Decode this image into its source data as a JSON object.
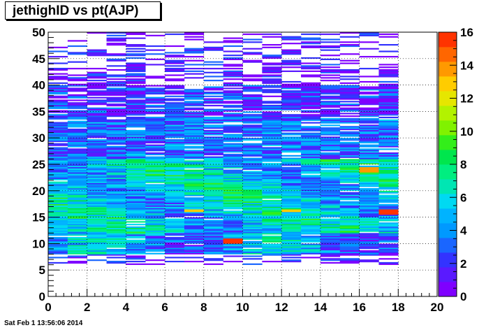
{
  "title": "jethighID vs pt(AJP)",
  "footer": {
    "timestamp": "Sat Feb  1 13:56:06 2014"
  },
  "chart_data": {
    "type": "heatmap",
    "title": "jethighID vs pt(AJP)",
    "xlabel": "",
    "ylabel": "",
    "xlim": [
      0,
      20
    ],
    "ylim": [
      0,
      50
    ],
    "x_ticks": [
      "0",
      "2",
      "4",
      "6",
      "8",
      "10",
      "12",
      "14",
      "16",
      "18",
      "20"
    ],
    "y_ticks": [
      "0",
      "5",
      "10",
      "15",
      "20",
      "25",
      "30",
      "35",
      "40",
      "45",
      "50"
    ],
    "colorbar": {
      "min": 0,
      "max": 16,
      "ticks": [
        "0",
        "2",
        "4",
        "6",
        "8",
        "10",
        "12",
        "14",
        "16"
      ],
      "palette": [
        "#7f00ff",
        "#5a1aff",
        "#3333ff",
        "#1a66ff",
        "#0099ff",
        "#00b3ff",
        "#00d9f2",
        "#00e6b3",
        "#00ee80",
        "#00e64d",
        "#33ee1a",
        "#80f200",
        "#b3f200",
        "#e6e600",
        "#ffcc00",
        "#ff9900",
        "#ff6600",
        "#ff3300"
      ]
    },
    "x_bin_width": 1,
    "y_bin_width": 1,
    "x_bin_range": [
      0,
      18
    ],
    "y_bin_range": [
      6,
      50
    ],
    "grid": true,
    "grid_style": "dotted",
    "description_of_cells": "2D histogram: x = pt(AJP) in 18 unit bins from 0 to 18, y = jethighID in unit bins; densest near y 10-25, sparse above 35; peak count about 15-16 near x 9-10, y 10-11 and x 17, y 16"
  }
}
